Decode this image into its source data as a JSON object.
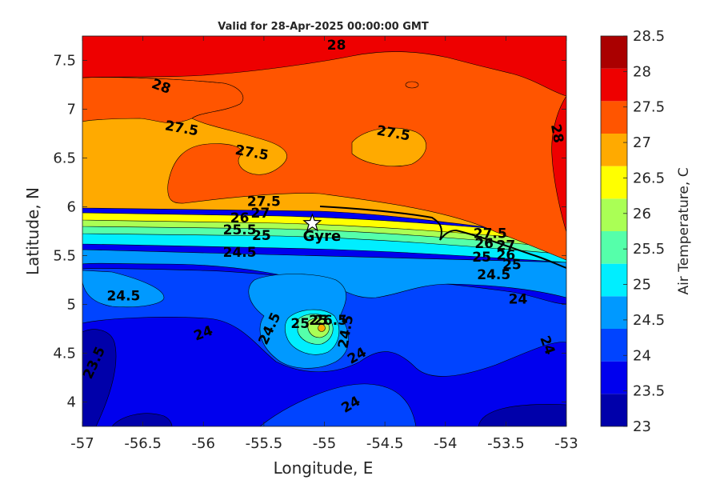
{
  "title": "Valid for 28-Apr-2025 00:00:00 GMT",
  "axes": {
    "xlabel": "Longitude, E",
    "ylabel": "Latitude, N",
    "xlim": [
      -57,
      -53
    ],
    "ylim": [
      3.75,
      7.75
    ],
    "xticks": [
      "-57",
      "-56.5",
      "-56",
      "-55.5",
      "-55",
      "-54.5",
      "-54",
      "-53.5",
      "-53"
    ],
    "yticks": [
      "4",
      "4.5",
      "5",
      "5.5",
      "6",
      "6.5",
      "7",
      "7.5"
    ]
  },
  "colorbar": {
    "label": "Air Temperature, C",
    "ticks": [
      "23",
      "23.5",
      "24",
      "24.5",
      "25",
      "25.5",
      "26",
      "26.5",
      "27",
      "27.5",
      "28",
      "28.5"
    ],
    "colors": [
      "#0000aa",
      "#0000ee",
      "#0044ff",
      "#0099ff",
      "#00eeff",
      "#55ffaa",
      "#aaff55",
      "#ffff00",
      "#ffaa00",
      "#ff5500",
      "#ee0000",
      "#aa0000"
    ]
  },
  "marker": {
    "name": "Gyre",
    "lon": -55.1,
    "lat": 5.83,
    "symbol": "star"
  },
  "contour_labels": [
    {
      "text": "28",
      "lon": -54.9,
      "lat": 7.65,
      "rot": 0
    },
    {
      "text": "28",
      "lon": -56.35,
      "lat": 7.23,
      "rot": 20
    },
    {
      "text": "28",
      "lon": -53.08,
      "lat": 6.75,
      "rot": 80
    },
    {
      "text": "27.5",
      "lon": -56.18,
      "lat": 6.8,
      "rot": 10
    },
    {
      "text": "27.5",
      "lon": -55.6,
      "lat": 6.55,
      "rot": 10
    },
    {
      "text": "27.5",
      "lon": -54.43,
      "lat": 6.75,
      "rot": 10
    },
    {
      "text": "27.5",
      "lon": -55.5,
      "lat": 6.05,
      "rot": 0
    },
    {
      "text": "27.5",
      "lon": -53.63,
      "lat": 5.72,
      "rot": 0
    },
    {
      "text": "26",
      "lon": -55.7,
      "lat": 5.88,
      "rot": 0
    },
    {
      "text": "27",
      "lon": -55.53,
      "lat": 5.93,
      "rot": 0
    },
    {
      "text": "25.5",
      "lon": -55.7,
      "lat": 5.76,
      "rot": 0
    },
    {
      "text": "25",
      "lon": -55.52,
      "lat": 5.7,
      "rot": 0
    },
    {
      "text": "26",
      "lon": -53.68,
      "lat": 5.62,
      "rot": 0
    },
    {
      "text": "27",
      "lon": -53.5,
      "lat": 5.6,
      "rot": 0
    },
    {
      "text": "25",
      "lon": -53.7,
      "lat": 5.48,
      "rot": 0
    },
    {
      "text": "26",
      "lon": -53.5,
      "lat": 5.5,
      "rot": 0
    },
    {
      "text": "25",
      "lon": -53.45,
      "lat": 5.4,
      "rot": 0
    },
    {
      "text": "24.5",
      "lon": -55.7,
      "lat": 5.53,
      "rot": 0
    },
    {
      "text": "24.5",
      "lon": -53.6,
      "lat": 5.3,
      "rot": 0
    },
    {
      "text": "24.5",
      "lon": -56.66,
      "lat": 5.08,
      "rot": 0
    },
    {
      "text": "24",
      "lon": -53.4,
      "lat": 5.05,
      "rot": 0
    },
    {
      "text": "24",
      "lon": -56.0,
      "lat": 4.7,
      "rot": -20
    },
    {
      "text": "24.5",
      "lon": -55.45,
      "lat": 4.75,
      "rot": -65
    },
    {
      "text": "25",
      "lon": -55.2,
      "lat": 4.8,
      "rot": 0
    },
    {
      "text": "25",
      "lon": -55.05,
      "lat": 4.83,
      "rot": 0
    },
    {
      "text": "26.5",
      "lon": -54.95,
      "lat": 4.83,
      "rot": 0
    },
    {
      "text": "24.5",
      "lon": -54.82,
      "lat": 4.72,
      "rot": -80
    },
    {
      "text": "24",
      "lon": -54.73,
      "lat": 4.47,
      "rot": -30
    },
    {
      "text": "24",
      "lon": -53.16,
      "lat": 4.58,
      "rot": 70
    },
    {
      "text": "23.5",
      "lon": -56.9,
      "lat": 4.4,
      "rot": -65
    },
    {
      "text": "24",
      "lon": -54.78,
      "lat": 3.97,
      "rot": -30
    }
  ]
}
